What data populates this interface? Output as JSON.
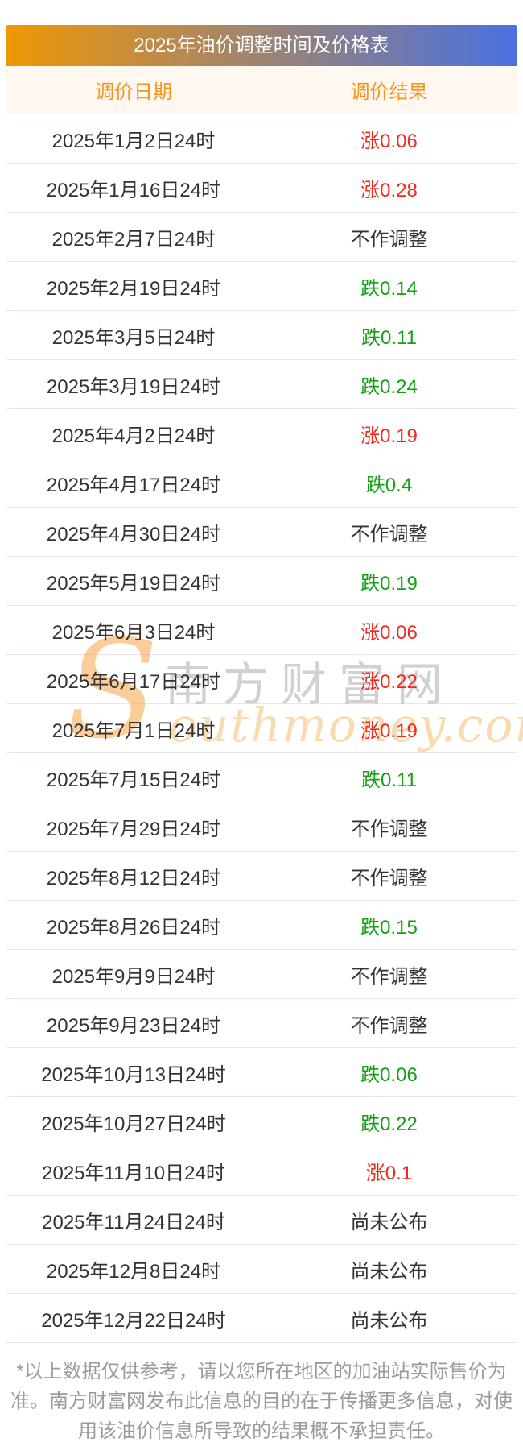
{
  "title": "2025年油价调整时间及价格表",
  "columns": [
    "调价日期",
    "调价结果"
  ],
  "rows": [
    {
      "date": "2025年1月2日24时",
      "result": "涨0.06",
      "type": "rise"
    },
    {
      "date": "2025年1月16日24时",
      "result": "涨0.28",
      "type": "rise"
    },
    {
      "date": "2025年2月7日24时",
      "result": "不作调整",
      "type": "none"
    },
    {
      "date": "2025年2月19日24时",
      "result": "跌0.14",
      "type": "fall"
    },
    {
      "date": "2025年3月5日24时",
      "result": "跌0.11",
      "type": "fall"
    },
    {
      "date": "2025年3月19日24时",
      "result": "跌0.24",
      "type": "fall"
    },
    {
      "date": "2025年4月2日24时",
      "result": "涨0.19",
      "type": "rise"
    },
    {
      "date": "2025年4月17日24时",
      "result": "跌0.4",
      "type": "fall"
    },
    {
      "date": "2025年4月30日24时",
      "result": "不作调整",
      "type": "none"
    },
    {
      "date": "2025年5月19日24时",
      "result": "跌0.19",
      "type": "fall"
    },
    {
      "date": "2025年6月3日24时",
      "result": "涨0.06",
      "type": "rise"
    },
    {
      "date": "2025年6月17日24时",
      "result": "涨0.22",
      "type": "rise"
    },
    {
      "date": "2025年7月1日24时",
      "result": "涨0.19",
      "type": "rise"
    },
    {
      "date": "2025年7月15日24时",
      "result": "跌0.11",
      "type": "fall"
    },
    {
      "date": "2025年7月29日24时",
      "result": "不作调整",
      "type": "none"
    },
    {
      "date": "2025年8月12日24时",
      "result": "不作调整",
      "type": "none"
    },
    {
      "date": "2025年8月26日24时",
      "result": "跌0.15",
      "type": "fall"
    },
    {
      "date": "2025年9月9日24时",
      "result": "不作调整",
      "type": "none"
    },
    {
      "date": "2025年9月23日24时",
      "result": "不作调整",
      "type": "none"
    },
    {
      "date": "2025年10月13日24时",
      "result": "跌0.06",
      "type": "fall"
    },
    {
      "date": "2025年10月27日24时",
      "result": "跌0.22",
      "type": "fall"
    },
    {
      "date": "2025年11月10日24时",
      "result": "涨0.1",
      "type": "rise"
    },
    {
      "date": "2025年11月24日24时",
      "result": "尚未公布",
      "type": "pending"
    },
    {
      "date": "2025年12月8日24时",
      "result": "尚未公布",
      "type": "pending"
    },
    {
      "date": "2025年12月22日24时",
      "result": "尚未公布",
      "type": "pending"
    }
  ],
  "watermark": {
    "s": "S",
    "cn": "南方财富网",
    "en": "outhmoney.com"
  },
  "disclaimer": "*以上数据仅供参考，请以您所在地区的加油站实际售价为准。南方财富网发布此信息的目的在于传播更多信息，对使用该油价信息所导致的结果概不承担责任。",
  "colors": {
    "rise": "#f4281a",
    "fall": "#11a111",
    "neutral": "#333333",
    "header_accent": "#f7941e",
    "header_bg": "#fef8f0",
    "border": "#e3e7ef",
    "gradient_left": "#f09705",
    "gradient_right": "#4a71e0"
  },
  "chart_data": {
    "type": "table",
    "title": "2025年油价调整时间及价格表",
    "columns": [
      "调价日期",
      "调价结果"
    ],
    "rows": [
      [
        "2025年1月2日24时",
        "涨0.06"
      ],
      [
        "2025年1月16日24时",
        "涨0.28"
      ],
      [
        "2025年2月7日24时",
        "不作调整"
      ],
      [
        "2025年2月19日24时",
        "跌0.14"
      ],
      [
        "2025年3月5日24时",
        "跌0.11"
      ],
      [
        "2025年3月19日24时",
        "跌0.24"
      ],
      [
        "2025年4月2日24时",
        "涨0.19"
      ],
      [
        "2025年4月17日24时",
        "跌0.4"
      ],
      [
        "2025年4月30日24时",
        "不作调整"
      ],
      [
        "2025年5月19日24时",
        "跌0.19"
      ],
      [
        "2025年6月3日24时",
        "涨0.06"
      ],
      [
        "2025年6月17日24时",
        "涨0.22"
      ],
      [
        "2025年7月1日24时",
        "涨0.19"
      ],
      [
        "2025年7月15日24时",
        "跌0.11"
      ],
      [
        "2025年7月29日24时",
        "不作调整"
      ],
      [
        "2025年8月12日24时",
        "不作调整"
      ],
      [
        "2025年8月26日24时",
        "跌0.15"
      ],
      [
        "2025年9月9日24时",
        "不作调整"
      ],
      [
        "2025年9月23日24时",
        "不作调整"
      ],
      [
        "2025年10月13日24时",
        "跌0.06"
      ],
      [
        "2025年10月27日24时",
        "跌0.22"
      ],
      [
        "2025年11月10日24时",
        "涨0.1"
      ],
      [
        "2025年11月24日24时",
        "尚未公布"
      ],
      [
        "2025年12月8日24时",
        "尚未公布"
      ],
      [
        "2025年12月22日24时",
        "尚未公布"
      ]
    ]
  }
}
